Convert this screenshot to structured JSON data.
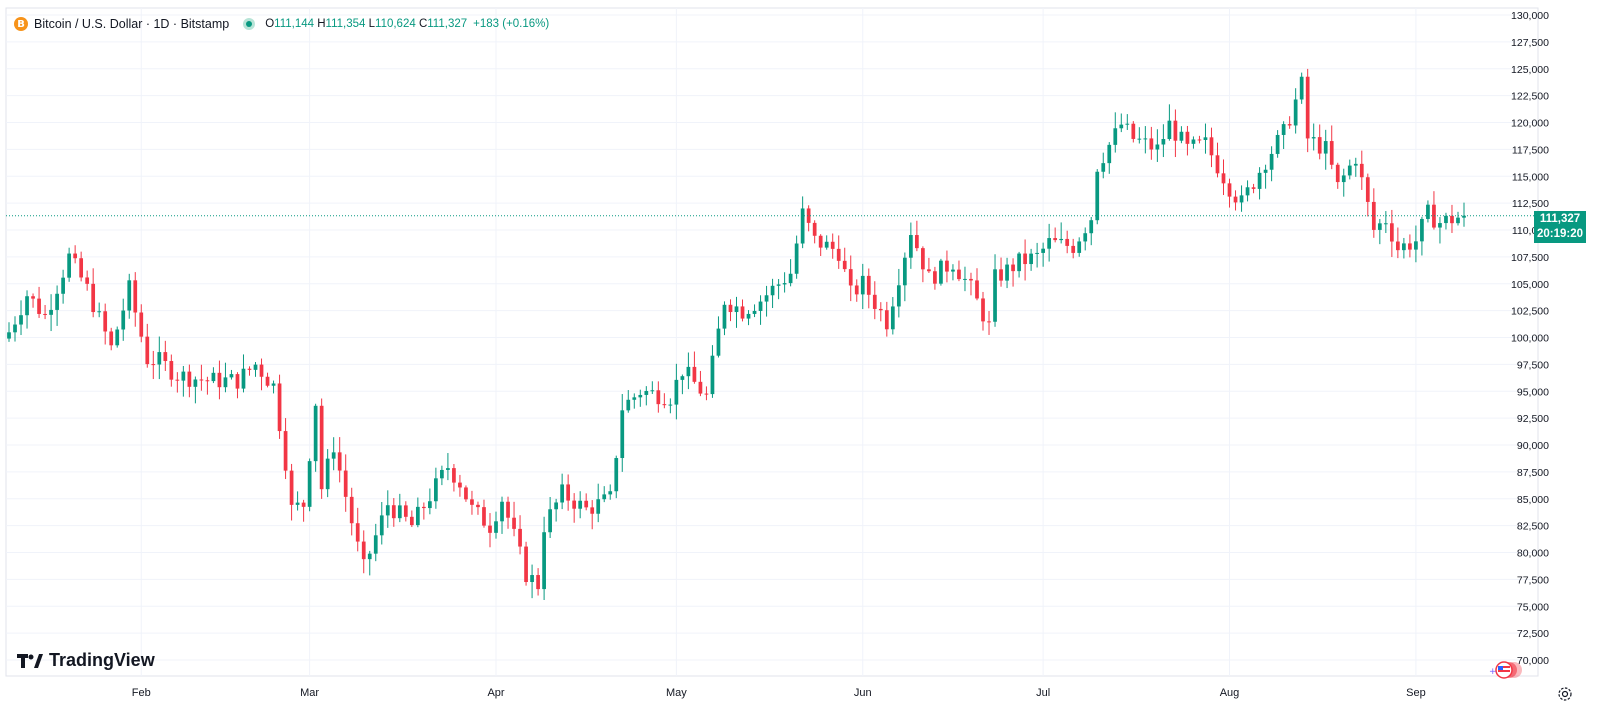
{
  "header": {
    "symbol_icon": "B",
    "title": "Bitcoin / U.S. Dollar · 1D · Bitstamp",
    "open_label": "O",
    "open": "111,144",
    "high_label": "H",
    "high": "111,354",
    "low_label": "L",
    "low": "110,624",
    "close_label": "C",
    "close": "111,327",
    "change": "+183 (+0.16%)"
  },
  "last_price": {
    "price": "111,327",
    "countdown": "20:19:20"
  },
  "logo": {
    "text": "TradingView"
  },
  "colors": {
    "up": "#089981",
    "down": "#f23645",
    "grid": "#f0f3fa",
    "axis_text": "#131722"
  },
  "icons": {
    "settings": "gear-icon",
    "symbol": "bitcoin-icon",
    "flag": "us-flag-icon"
  },
  "chart_data": {
    "type": "candlestick",
    "interval": "1D",
    "y_axis_side": "right",
    "ylim": [
      70000,
      130000
    ],
    "y_ticks": [
      70000,
      72500,
      75000,
      77500,
      80000,
      82500,
      85000,
      87500,
      90000,
      92500,
      95000,
      97500,
      100000,
      102500,
      105000,
      107500,
      110000,
      112500,
      115000,
      117500,
      120000,
      122500,
      125000,
      127500,
      130000
    ],
    "y_tick_labels": [
      "70,000",
      "72,500",
      "75,000",
      "77,500",
      "80,000",
      "82,500",
      "85,000",
      "87,500",
      "90,000",
      "92,500",
      "95,000",
      "97,500",
      "100,000",
      "102,500",
      "105,000",
      "107,500",
      "110,000",
      "112,500",
      "115,000",
      "117,500",
      "120,000",
      "122,500",
      "125,000",
      "127,500",
      "130,000"
    ],
    "x_range": [
      "2025-01-10",
      "2025-09-09"
    ],
    "x_ticks": [
      {
        "date": "2025-02-01",
        "label": "Feb"
      },
      {
        "date": "2025-03-01",
        "label": "Mar"
      },
      {
        "date": "2025-04-01",
        "label": "Apr"
      },
      {
        "date": "2025-05-01",
        "label": "May"
      },
      {
        "date": "2025-06-01",
        "label": "Jun"
      },
      {
        "date": "2025-07-01",
        "label": "Jul"
      },
      {
        "date": "2025-08-01",
        "label": "Aug"
      },
      {
        "date": "2025-09-01",
        "label": "Sep"
      }
    ],
    "last_close": 111327,
    "anchors": [
      [
        "2025-01-10",
        100500
      ],
      [
        "2025-01-13",
        104000
      ],
      [
        "2025-01-16",
        102000
      ],
      [
        "2025-01-20",
        107500
      ],
      [
        "2025-01-23",
        104500
      ],
      [
        "2025-01-27",
        99000
      ],
      [
        "2025-01-30",
        104500
      ],
      [
        "2025-02-02",
        98000
      ],
      [
        "2025-02-04",
        97800
      ],
      [
        "2025-02-07",
        96500
      ],
      [
        "2025-02-12",
        96000
      ],
      [
        "2025-02-17",
        96000
      ],
      [
        "2025-02-20",
        97500
      ],
      [
        "2025-02-23",
        95500
      ],
      [
        "2025-02-25",
        88500
      ],
      [
        "2025-02-26",
        84000
      ],
      [
        "2025-02-28",
        84500
      ],
      [
        "2025-03-02",
        94000
      ],
      [
        "2025-03-03",
        86000
      ],
      [
        "2025-03-05",
        90000
      ],
      [
        "2025-03-09",
        80500
      ],
      [
        "2025-03-10",
        78500
      ],
      [
        "2025-03-14",
        84500
      ],
      [
        "2025-03-18",
        82500
      ],
      [
        "2025-03-24",
        88000
      ],
      [
        "2025-03-26",
        86500
      ],
      [
        "2025-03-28",
        84000
      ],
      [
        "2025-03-31",
        82500
      ],
      [
        "2025-04-02",
        85000
      ],
      [
        "2025-04-06",
        78000
      ],
      [
        "2025-04-08",
        77000
      ],
      [
        "2025-04-09",
        82500
      ],
      [
        "2025-04-12",
        85500
      ],
      [
        "2025-04-16",
        84000
      ],
      [
        "2025-04-20",
        85000
      ],
      [
        "2025-04-22",
        93500
      ],
      [
        "2025-04-25",
        95000
      ],
      [
        "2025-04-30",
        94500
      ],
      [
        "2025-05-02",
        97000
      ],
      [
        "2025-05-06",
        94500
      ],
      [
        "2025-05-09",
        103500
      ],
      [
        "2025-05-12",
        102500
      ],
      [
        "2025-05-15",
        103500
      ],
      [
        "2025-05-20",
        106000
      ],
      [
        "2025-05-22",
        111500
      ],
      [
        "2025-05-24",
        109000
      ],
      [
        "2025-05-28",
        108000
      ],
      [
        "2025-05-30",
        104000
      ],
      [
        "2025-06-01",
        105000
      ],
      [
        "2025-06-05",
        101500
      ],
      [
        "2025-06-09",
        110000
      ],
      [
        "2025-06-12",
        105500
      ],
      [
        "2025-06-16",
        107000
      ],
      [
        "2025-06-19",
        104500
      ],
      [
        "2025-06-22",
        101000
      ],
      [
        "2025-06-23",
        105500
      ],
      [
        "2025-06-27",
        107000
      ],
      [
        "2025-06-30",
        107500
      ],
      [
        "2025-07-02",
        108800
      ],
      [
        "2025-07-06",
        108500
      ],
      [
        "2025-07-09",
        111200
      ],
      [
        "2025-07-10",
        116000
      ],
      [
        "2025-07-14",
        119800
      ],
      [
        "2025-07-16",
        118500
      ],
      [
        "2025-07-20",
        117500
      ],
      [
        "2025-07-22",
        119800
      ],
      [
        "2025-07-25",
        117500
      ],
      [
        "2025-07-28",
        118000
      ],
      [
        "2025-08-01",
        114000
      ],
      [
        "2025-08-03",
        112500
      ],
      [
        "2025-08-07",
        116500
      ],
      [
        "2025-08-10",
        119000
      ],
      [
        "2025-08-13",
        123500
      ],
      [
        "2025-08-14",
        118500
      ],
      [
        "2025-08-17",
        117500
      ],
      [
        "2025-08-19",
        114000
      ],
      [
        "2025-08-22",
        116800
      ],
      [
        "2025-08-25",
        110000
      ],
      [
        "2025-08-27",
        111000
      ],
      [
        "2025-08-29",
        108300
      ],
      [
        "2025-09-01",
        109000
      ],
      [
        "2025-09-03",
        111500
      ],
      [
        "2025-09-05",
        110700
      ],
      [
        "2025-09-09",
        111327
      ]
    ]
  }
}
